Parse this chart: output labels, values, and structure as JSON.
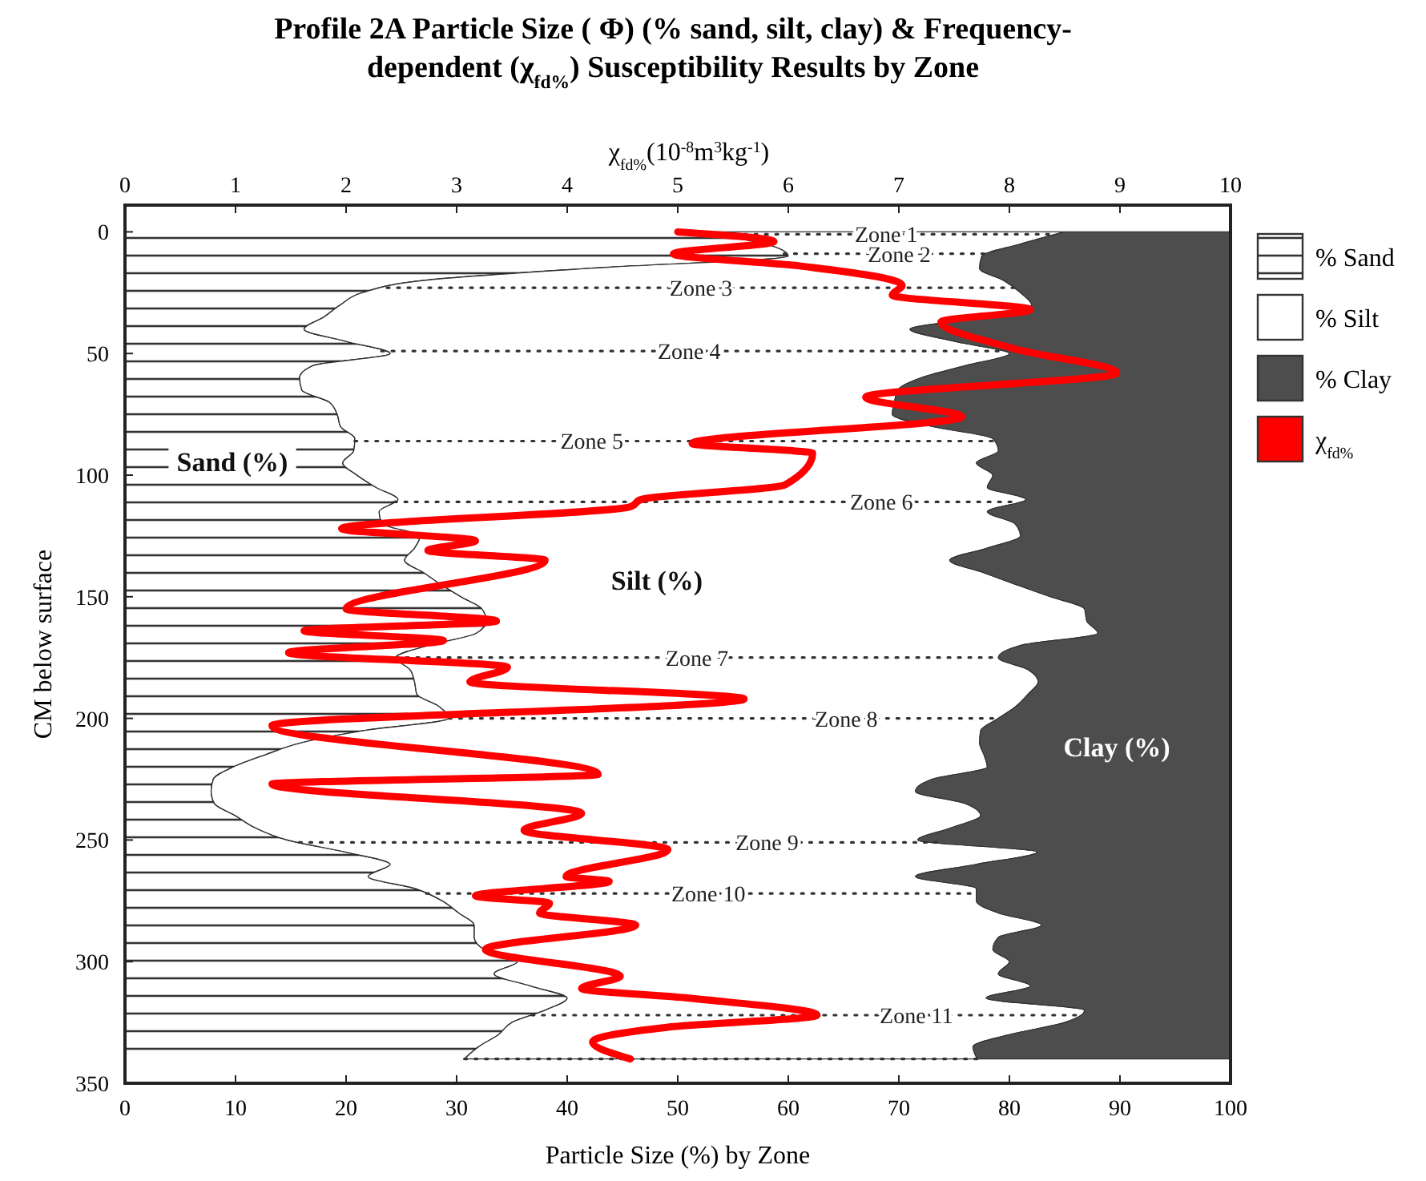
{
  "chart_data": {
    "type": "area",
    "orientation": "horizontal",
    "stacked": true,
    "title": "Profile 2A Particle Size ( Φ) (% sand, silt, clay) & Frequency-dependent (χ$_{fd%}$) Susceptibility Results by Zone",
    "xlabel": "Particle Size (%) by Zone",
    "ylabel": "CM below surface",
    "x2label": "χ$_{fd%}$(10$^{-8}$m$^{3}$kg$^{-1}$)",
    "x": [
      0,
      5,
      10,
      15,
      20,
      25,
      30,
      35,
      40,
      45,
      50,
      55,
      60,
      65,
      70,
      75,
      80,
      85,
      90,
      95,
      100,
      105,
      110,
      115,
      120,
      125,
      130,
      135,
      140,
      145,
      150,
      155,
      160,
      165,
      170,
      175,
      180,
      185,
      190,
      195,
      200,
      205,
      210,
      215,
      220,
      225,
      230,
      235,
      240,
      245,
      250,
      255,
      260,
      265,
      270,
      275,
      280,
      285,
      290,
      295,
      300,
      305,
      310,
      315,
      320,
      325,
      330,
      335,
      340
    ],
    "xlim": [
      0,
      100
    ],
    "xticks": [
      0,
      10,
      20,
      30,
      40,
      50,
      60,
      70,
      80,
      90,
      100
    ],
    "x2lim": [
      0,
      10
    ],
    "x2ticks": [
      0,
      1,
      2,
      3,
      4,
      5,
      6,
      7,
      8,
      9,
      10
    ],
    "ylim": [
      350,
      -11
    ],
    "yticks": [
      0,
      50,
      100,
      150,
      200,
      250,
      300,
      350
    ],
    "legend": "right",
    "series": [
      {
        "name": "% Sand",
        "color": "#333333",
        "values": [
          52,
          58,
          60,
          42,
          27,
          21.5,
          19.5,
          18,
          16.2,
          20,
          24,
          17,
          15.8,
          16,
          18.5,
          19.2,
          19.5,
          20.8,
          20.7,
          19.7,
          21,
          22.7,
          24.7,
          23,
          23.3,
          26.7,
          26.2,
          25.3,
          27,
          28.6,
          30.4,
          32.3,
          32.7,
          31.8,
          27.5,
          24.5,
          25.8,
          26.2,
          26.4,
          28.4,
          29.3,
          21.7,
          16,
          12.7,
          9.8,
          8,
          7.8,
          8.1,
          10,
          11.8,
          14.7,
          20,
          24,
          22,
          26.3,
          28.7,
          30.2,
          31.6,
          31.6,
          32.5,
          35.5,
          33.4,
          36.7,
          40,
          38,
          35,
          33.8,
          32,
          30.7
        ]
      },
      {
        "name": "% Silt",
        "color": "#ffffff",
        "values": [
          33,
          23,
          17.5,
          35.3,
          52.5,
          59.5,
          62.5,
          60,
          54.8,
          55,
          56,
          59,
          56.2,
          53.9,
          51.1,
          50.2,
          53.5,
          57.7,
          58.3,
          57.3,
          57.5,
          55.3,
          56.8,
          55,
          57.2,
          54.3,
          51.8,
          49.3,
          50.6,
          52,
          53.3,
          54.5,
          54.3,
          56.2,
          53.5,
          54.5,
          55.9,
          56.4,
          55.3,
          52.2,
          49.7,
          55.7,
          61.3,
          65,
          68.2,
          65,
          63.7,
          67.9,
          67.4,
          62.9,
          57,
          62.5,
          53,
          49.5,
          50.7,
          48.3,
          48.8,
          51.3,
          47.4,
          46,
          44.5,
          45.6,
          45.2,
          37.9,
          48.8,
          50,
          46.2,
          44.7,
          46.4
        ]
      },
      {
        "name": "% Clay",
        "color": "#4d4d4d",
        "values": [
          15,
          19,
          22.5,
          22.7,
          20.5,
          19,
          18,
          22,
          29,
          25,
          20,
          24,
          28,
          30.1,
          30.4,
          30.6,
          27,
          21.5,
          21,
          23,
          21.5,
          22,
          18.5,
          22,
          19.5,
          19,
          22,
          25.4,
          22.4,
          19.4,
          16.3,
          13.2,
          13,
          12,
          19,
          21,
          18.3,
          17.4,
          18.3,
          19.4,
          21,
          22.6,
          22.7,
          22.3,
          22,
          27,
          28.5,
          24,
          22.6,
          25.3,
          28.3,
          17.5,
          23,
          28.5,
          23,
          23,
          21,
          17.1,
          21,
          21.5,
          20,
          21,
          18.1,
          22.1,
          13.2,
          15,
          20,
          23.3,
          22.9
        ]
      },
      {
        "name": "χ$_{fd%}$",
        "type": "line",
        "axis": "x2",
        "color": "#ff0000",
        "x": [
          0,
          4,
          9,
          14,
          22,
          26,
          32,
          37,
          48,
          58,
          68,
          76,
          87,
          91,
          104,
          110,
          113,
          122,
          127,
          131,
          135,
          155,
          160,
          164,
          168,
          173,
          179,
          185,
          192,
          203,
          223,
          227,
          239,
          246,
          254,
          265,
          267,
          273,
          276,
          280,
          285,
          295,
          306,
          311,
          315,
          322,
          327,
          333,
          340
        ],
        "values": [
          5.0,
          5.87,
          4.96,
          6.1,
          7.03,
          6.94,
          8.19,
          7.38,
          8.04,
          8.97,
          6.7,
          7.57,
          5.13,
          6.22,
          5.97,
          4.67,
          4.57,
          1.96,
          3.17,
          2.74,
          3.8,
          2.0,
          3.36,
          1.62,
          2.88,
          1.48,
          3.46,
          3.12,
          5.6,
          1.33,
          4.28,
          1.33,
          4.13,
          3.61,
          4.91,
          3.99,
          4.38,
          3.17,
          3.84,
          3.75,
          4.62,
          3.26,
          4.48,
          4.13,
          5.1,
          6.26,
          4.9,
          4.23,
          4.57
        ]
      }
    ],
    "ref_lines": [
      {
        "axis": "y",
        "value": 1,
        "label": "Zone 1"
      },
      {
        "axis": "y",
        "value": 9,
        "label": "Zone 2"
      },
      {
        "axis": "y",
        "value": 23,
        "label": "Zone 3"
      },
      {
        "axis": "y",
        "value": 49,
        "label": "Zone 4"
      },
      {
        "axis": "y",
        "value": 86,
        "label": "Zone 5"
      },
      {
        "axis": "y",
        "value": 111,
        "label": "Zone 6"
      },
      {
        "axis": "y",
        "value": 175,
        "label": "Zone 7"
      },
      {
        "axis": "y",
        "value": 200,
        "label": "Zone 8"
      },
      {
        "axis": "y",
        "value": 251,
        "label": "Zone 9"
      },
      {
        "axis": "y",
        "value": 272,
        "label": "Zone 10"
      },
      {
        "axis": "y",
        "value": 322,
        "label": "Zone 11"
      },
      {
        "axis": "y",
        "value": 340
      }
    ],
    "annotations": [
      "Sand (%)",
      "Silt (%)",
      "Clay (%)"
    ]
  }
}
